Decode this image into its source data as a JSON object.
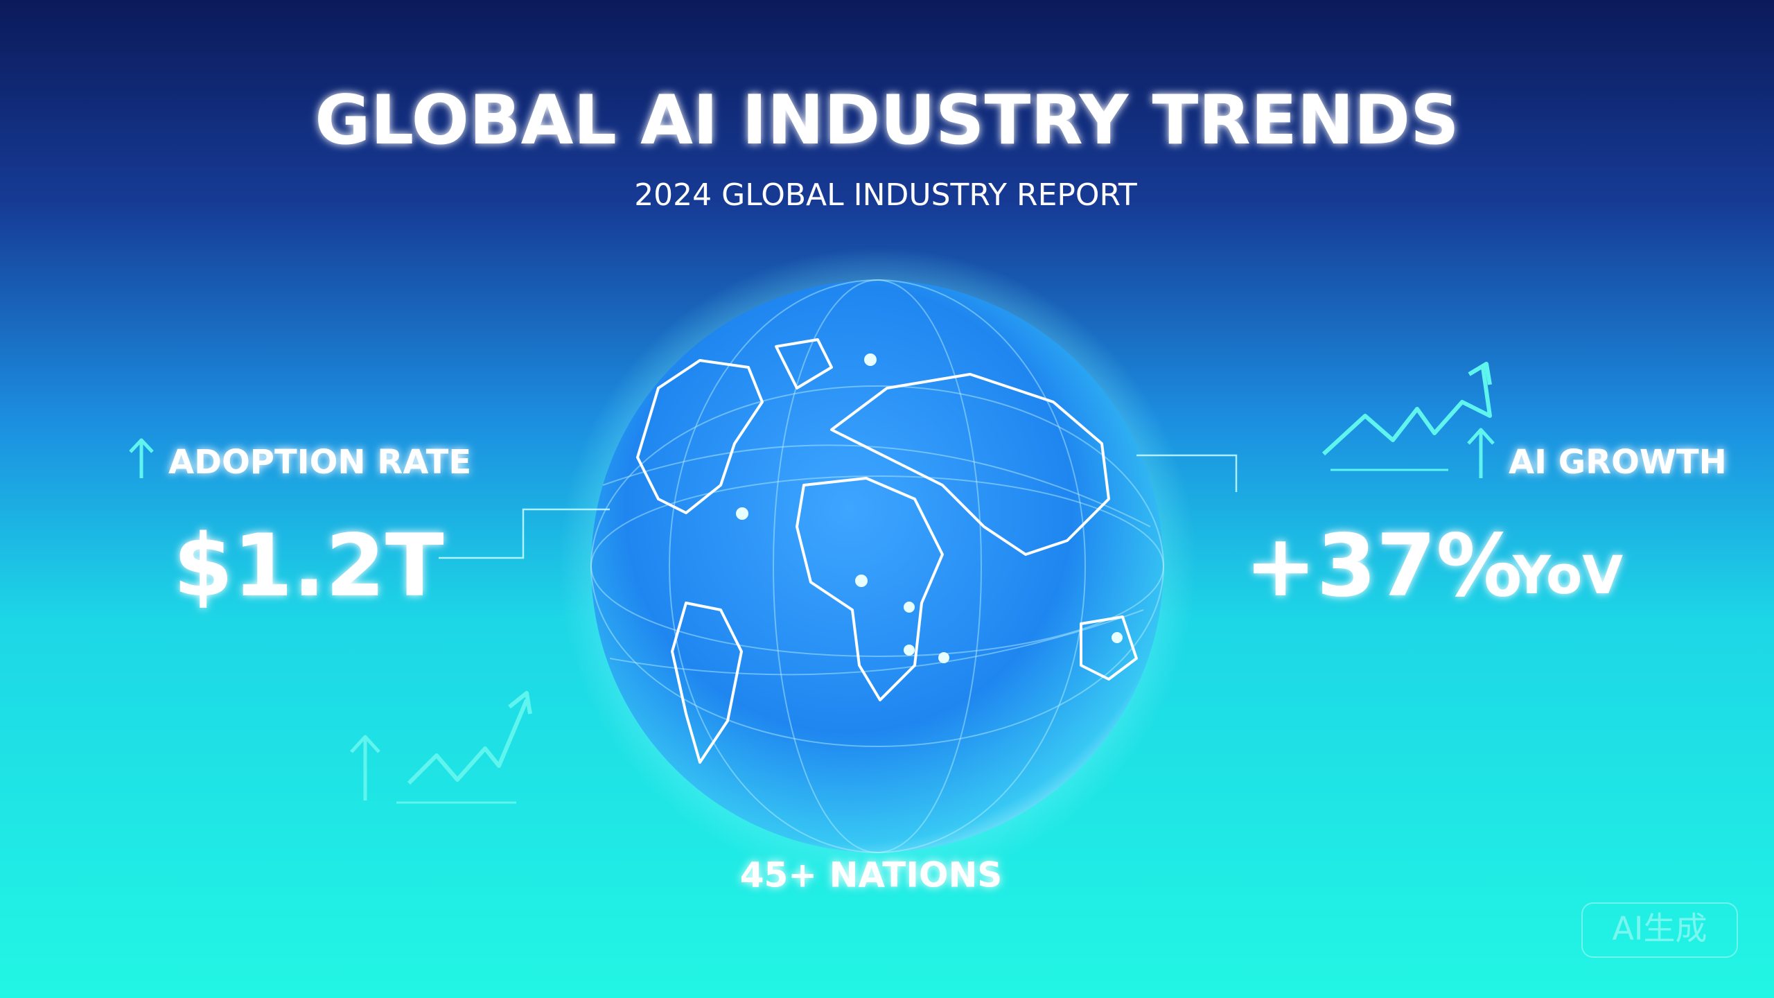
{
  "header": {
    "title": "GLOBAL AI INDUSTRY TRENDS",
    "subtitle": "2024 GLOBAL INDUSTRY REPORT"
  },
  "left_stat": {
    "label": "ADOPTION RATE",
    "value": "$1.2T"
  },
  "right_stat": {
    "label": "AI GROWTH",
    "value": "+37%",
    "suffix": "YoV"
  },
  "footer": {
    "caption": "45+ NATIONS"
  },
  "watermark": "AI生成"
}
